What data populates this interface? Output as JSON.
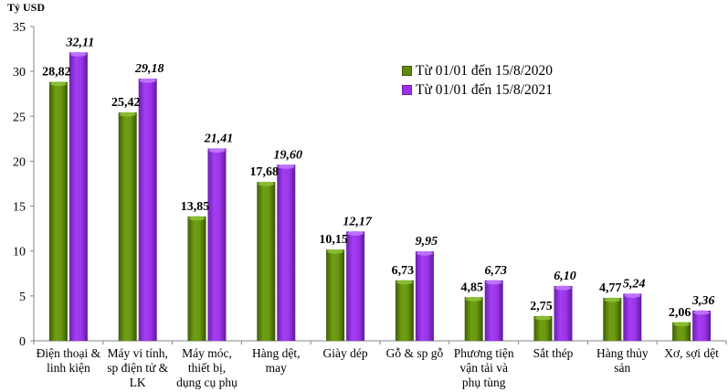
{
  "chart_data": {
    "type": "bar",
    "title": "",
    "unit_label": "Tỷ USD",
    "xlabel": "",
    "ylabel": "Tỷ USD",
    "ylim": [
      0,
      35
    ],
    "yticks": [
      0,
      5,
      10,
      15,
      20,
      25,
      30,
      35
    ],
    "grid": false,
    "legend_position": "upper right (inside plot)",
    "categories": [
      [
        "Điện thoại &",
        "linh kiện"
      ],
      [
        "Máy vi tính,",
        "sp điện tử &",
        "LK"
      ],
      [
        "Máy móc,",
        "thiết bị,",
        "dụng cụ phụ"
      ],
      [
        "Hàng dệt,",
        "may"
      ],
      [
        "Giày dép"
      ],
      [
        "Gỗ & sp gỗ"
      ],
      [
        "Phương tiện",
        "vận tải và",
        "phụ tùng"
      ],
      [
        "Sắt thép"
      ],
      [
        "Hàng thủy",
        "sản"
      ],
      [
        "Xơ, sợi dệt"
      ]
    ],
    "series": [
      {
        "name": "Từ 01/01 đến 15/8/2020",
        "color": "#5f8a0b",
        "label_style": "bold",
        "values": [
          28.82,
          25.42,
          13.85,
          17.68,
          10.15,
          6.73,
          4.85,
          2.75,
          4.77,
          2.06
        ],
        "labels": [
          "28,82",
          "25,42",
          "13,85",
          "17,68",
          "10,15",
          "6,73",
          "4,85",
          "2,75",
          "4,77",
          "2,06"
        ]
      },
      {
        "name": "Từ 01/01 đến 15/8/2021",
        "color": "#9b30e8",
        "label_style": "bold-italic",
        "values": [
          32.11,
          29.18,
          21.41,
          19.6,
          12.17,
          9.95,
          6.73,
          6.1,
          5.24,
          3.36
        ],
        "labels": [
          "32,11",
          "29,18",
          "21,41",
          "19,60",
          "12,17",
          "9,95",
          "6,73",
          "6,10",
          "5,24",
          "3,36"
        ]
      }
    ]
  }
}
